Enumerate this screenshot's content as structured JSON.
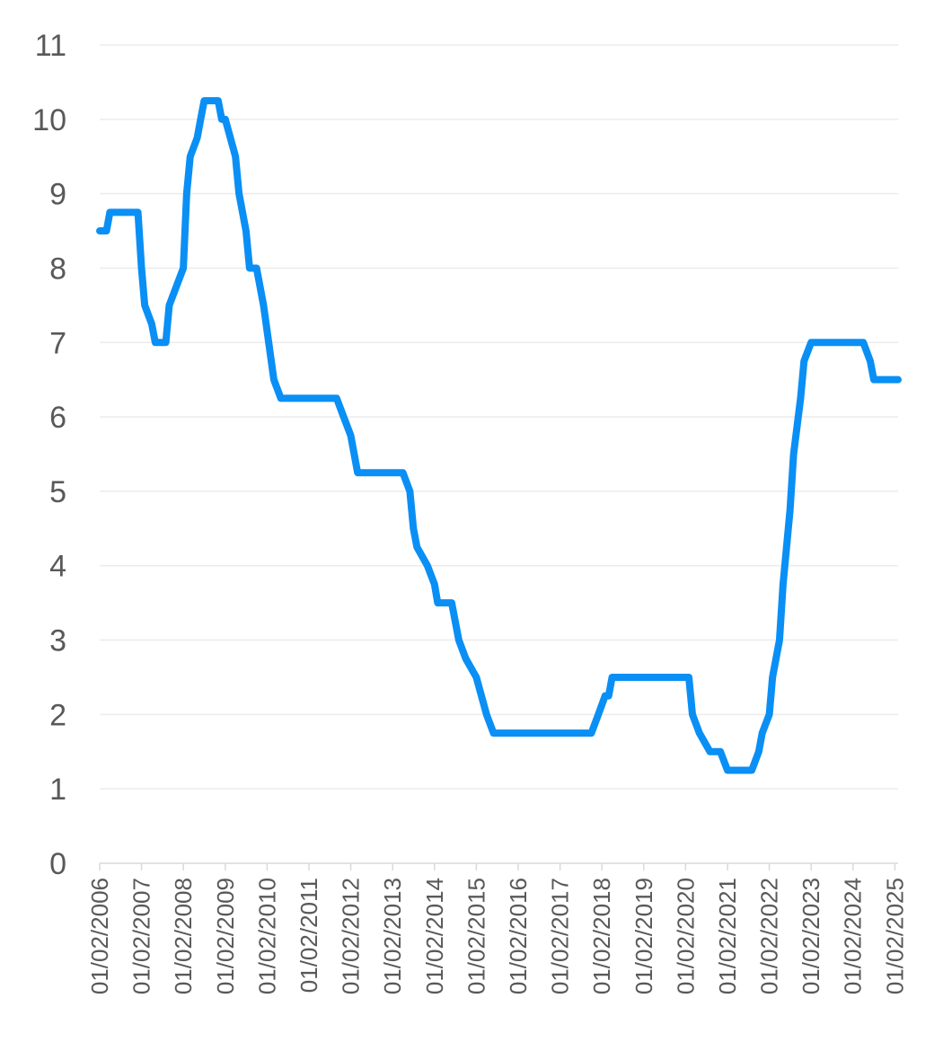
{
  "chart_data": {
    "type": "line",
    "title": "",
    "xlabel": "",
    "ylabel": "",
    "ylim": [
      0,
      11
    ],
    "y_ticks": [
      0,
      1,
      2,
      3,
      4,
      5,
      6,
      7,
      8,
      9,
      10,
      11
    ],
    "x_ticks": [
      "01/02/2006",
      "01/02/2007",
      "01/02/2008",
      "01/02/2009",
      "01/02/2010",
      "01/02/2011",
      "01/02/2012",
      "01/02/2013",
      "01/02/2014",
      "01/02/2015",
      "01/02/2016",
      "01/02/2017",
      "01/02/2018",
      "01/02/2019",
      "01/02/2020",
      "01/02/2021",
      "01/02/2022",
      "01/02/2023",
      "01/02/2024",
      "01/02/2025"
    ],
    "xlim": [
      "2006-02-01",
      "2025-03-01"
    ],
    "grid": true,
    "legend": "none",
    "colors": {
      "series": "#0a8ff5",
      "grid": "#ececec",
      "axis": "#d9d9d9",
      "text": "#595959"
    },
    "series": [
      {
        "points": [
          [
            "2006-02-01",
            8.5
          ],
          [
            "2006-04-01",
            8.5
          ],
          [
            "2006-05-01",
            8.75
          ],
          [
            "2007-01-01",
            8.75
          ],
          [
            "2007-02-01",
            8.0
          ],
          [
            "2007-03-01",
            7.5
          ],
          [
            "2007-05-01",
            7.25
          ],
          [
            "2007-06-01",
            7.0
          ],
          [
            "2007-09-01",
            7.0
          ],
          [
            "2007-10-01",
            7.5
          ],
          [
            "2008-02-01",
            8.0
          ],
          [
            "2008-03-01",
            9.0
          ],
          [
            "2008-04-01",
            9.5
          ],
          [
            "2008-06-01",
            9.75
          ],
          [
            "2008-07-01",
            10.0
          ],
          [
            "2008-08-01",
            10.25
          ],
          [
            "2008-12-01",
            10.25
          ],
          [
            "2009-01-01",
            10.0
          ],
          [
            "2009-02-01",
            10.0
          ],
          [
            "2009-05-01",
            9.5
          ],
          [
            "2009-06-01",
            9.0
          ],
          [
            "2009-08-01",
            8.5
          ],
          [
            "2009-09-01",
            8.0
          ],
          [
            "2009-11-01",
            8.0
          ],
          [
            "2010-01-01",
            7.5
          ],
          [
            "2010-04-01",
            6.5
          ],
          [
            "2010-06-01",
            6.25
          ],
          [
            "2011-10-01",
            6.25
          ],
          [
            "2011-12-01",
            6.0
          ],
          [
            "2012-02-01",
            5.75
          ],
          [
            "2012-04-01",
            5.25
          ],
          [
            "2013-05-01",
            5.25
          ],
          [
            "2013-07-01",
            5.0
          ],
          [
            "2013-08-01",
            4.5
          ],
          [
            "2013-09-01",
            4.25
          ],
          [
            "2013-12-01",
            4.0
          ],
          [
            "2014-02-01",
            3.75
          ],
          [
            "2014-03-01",
            3.5
          ],
          [
            "2014-07-01",
            3.5
          ],
          [
            "2014-09-01",
            3.0
          ],
          [
            "2014-11-01",
            2.75
          ],
          [
            "2015-02-01",
            2.5
          ],
          [
            "2015-05-01",
            2.0
          ],
          [
            "2015-07-01",
            1.75
          ],
          [
            "2017-11-01",
            1.75
          ],
          [
            "2018-01-01",
            2.0
          ],
          [
            "2018-03-01",
            2.25
          ],
          [
            "2018-04-01",
            2.25
          ],
          [
            "2018-05-01",
            2.5
          ],
          [
            "2020-03-01",
            2.5
          ],
          [
            "2020-04-01",
            2.0
          ],
          [
            "2020-06-01",
            1.75
          ],
          [
            "2020-09-01",
            1.5
          ],
          [
            "2020-12-01",
            1.5
          ],
          [
            "2021-02-01",
            1.25
          ],
          [
            "2021-09-01",
            1.25
          ],
          [
            "2021-11-01",
            1.5
          ],
          [
            "2021-12-01",
            1.75
          ],
          [
            "2022-02-01",
            2.0
          ],
          [
            "2022-03-01",
            2.5
          ],
          [
            "2022-05-01",
            3.0
          ],
          [
            "2022-06-01",
            3.75
          ],
          [
            "2022-08-01",
            4.75
          ],
          [
            "2022-09-01",
            5.5
          ],
          [
            "2022-11-01",
            6.25
          ],
          [
            "2022-12-01",
            6.75
          ],
          [
            "2023-02-01",
            7.0
          ],
          [
            "2024-05-01",
            7.0
          ],
          [
            "2024-07-01",
            6.75
          ],
          [
            "2024-08-01",
            6.5
          ],
          [
            "2025-03-01",
            6.5
          ]
        ]
      }
    ]
  }
}
